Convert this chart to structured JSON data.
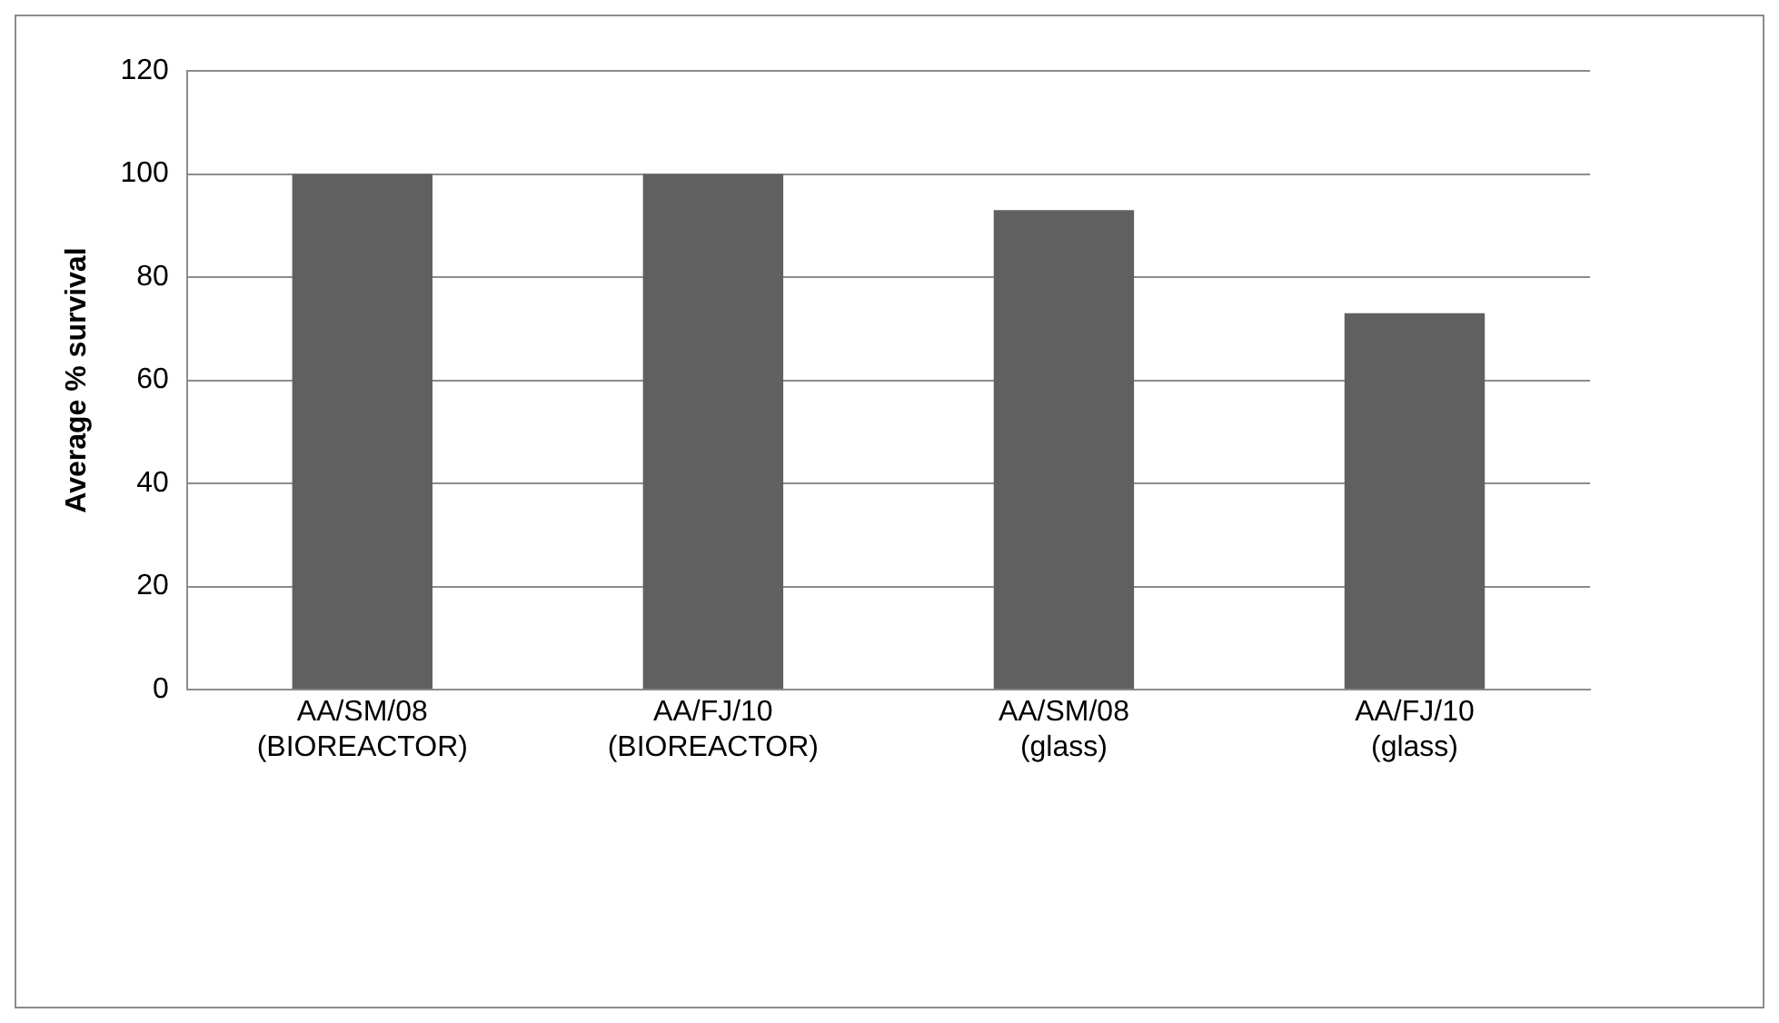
{
  "chart_data": {
    "type": "bar",
    "ylabel": "Average % survival",
    "categories": [
      "AA/SM/08 (BIOREACTOR)",
      "AA/FJ/10 (BIOREACTOR)",
      "AA/SM/08 (glass)",
      "AA/FJ/10 (glass)"
    ],
    "values": [
      100,
      100,
      93,
      73
    ],
    "color": "#606060",
    "ylim": [
      0,
      120
    ],
    "yticks": [
      0,
      20,
      40,
      60,
      80,
      100,
      120
    ],
    "grid": "y",
    "legend": false
  }
}
